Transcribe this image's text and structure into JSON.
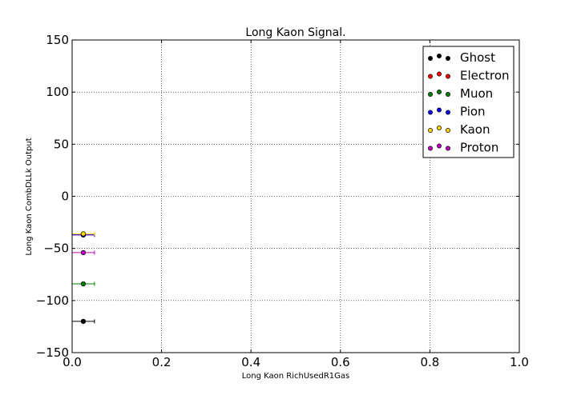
{
  "chart_data": {
    "type": "scatter",
    "title": "Long Kaon Signal.",
    "xlabel": "Long Kaon RichUsedR1Gas",
    "ylabel": "Long Kaon CombDLLk Output",
    "xlim": [
      0.0,
      1.0
    ],
    "ylim": [
      -150,
      150
    ],
    "x_ticks": [
      0.0,
      0.2,
      0.4,
      0.6,
      0.8,
      1.0
    ],
    "x_tick_labels": [
      "0.0",
      "0.2",
      "0.4",
      "0.6",
      "0.8",
      "1.0"
    ],
    "y_ticks": [
      -150,
      -100,
      -50,
      0,
      50,
      100,
      150
    ],
    "y_tick_labels": [
      "−150",
      "−100",
      "−50",
      "0",
      "50",
      "100",
      "150"
    ],
    "grid": true,
    "legend_position": "top-right",
    "series": [
      {
        "name": "Ghost",
        "color": "#000000",
        "points": [
          {
            "x": 0.025,
            "y": -120,
            "xerr": 0.025
          }
        ]
      },
      {
        "name": "Electron",
        "color": "#ff0000",
        "points": [
          {
            "x": 0.025,
            "y": -37,
            "xerr": 0.025
          }
        ]
      },
      {
        "name": "Muon",
        "color": "#008000",
        "points": [
          {
            "x": 0.025,
            "y": -84,
            "xerr": 0.025
          }
        ]
      },
      {
        "name": "Pion",
        "color": "#0000ff",
        "points": [
          {
            "x": 0.025,
            "y": -37,
            "xerr": 0.025
          }
        ]
      },
      {
        "name": "Kaon",
        "color": "#ffd700",
        "points": [
          {
            "x": 0.025,
            "y": -36,
            "xerr": 0.025
          }
        ]
      },
      {
        "name": "Proton",
        "color": "#bf00bf",
        "points": [
          {
            "x": 0.025,
            "y": -54,
            "xerr": 0.025
          }
        ]
      }
    ]
  }
}
